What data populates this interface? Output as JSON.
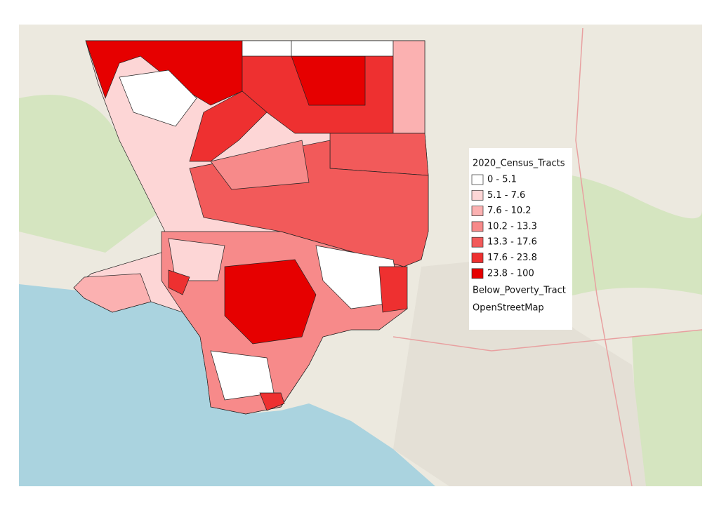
{
  "legend": {
    "title": "2020_Census_Tracts",
    "items": [
      {
        "label": "0 - 5.1",
        "color": "#ffffff"
      },
      {
        "label": "5.1 - 7.6",
        "color": "#fdd6d6"
      },
      {
        "label": "7.6 - 10.2",
        "color": "#fbb1b1"
      },
      {
        "label": "10.2 - 13.3",
        "color": "#f78a8a"
      },
      {
        "label": "13.3 - 17.6",
        "color": "#f25a5a"
      },
      {
        "label": "17.6 - 23.8",
        "color": "#ee3030"
      },
      {
        "label": "23.8 - 100",
        "color": "#e60000"
      }
    ],
    "layers": [
      "Below_Poverty_Tract",
      "OpenStreetMap"
    ]
  }
}
